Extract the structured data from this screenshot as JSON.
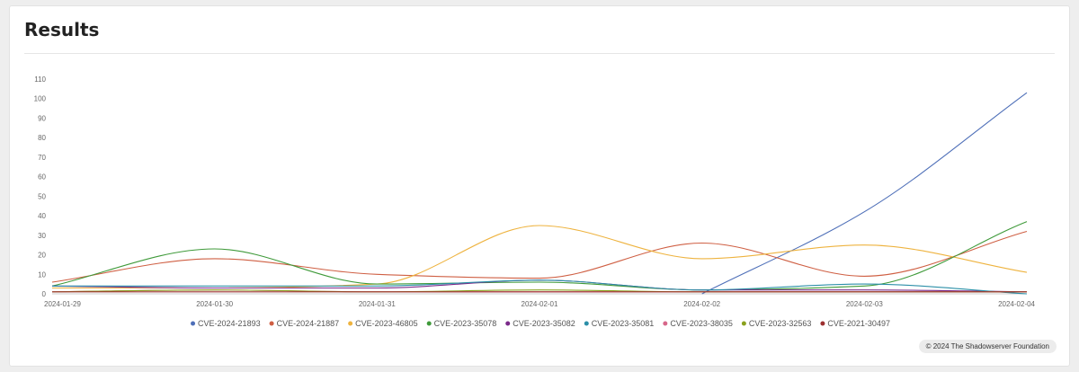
{
  "page": {
    "title": "Results",
    "credit": "© 2024 The Shadowserver Foundation"
  },
  "chart_data": {
    "type": "line",
    "title": "",
    "xlabel": "",
    "ylabel": "",
    "x": [
      "2024-01-29",
      "2024-01-30",
      "2024-01-31",
      "2024-02-01",
      "2024-02-02",
      "2024-02-03",
      "2024-02-04"
    ],
    "yticks": [
      0,
      10,
      20,
      30,
      40,
      50,
      60,
      70,
      80,
      90,
      100,
      110
    ],
    "ylim": [
      0,
      110
    ],
    "grid": false,
    "legend": "bottom",
    "series": [
      {
        "name": "CVE-2024-21893",
        "color": "#4e6fb8",
        "values": [
          null,
          null,
          null,
          null,
          0,
          42,
          103
        ]
      },
      {
        "name": "CVE-2024-21887",
        "color": "#cf5f43",
        "values": [
          6,
          18,
          10,
          8,
          26,
          9,
          32
        ]
      },
      {
        "name": "CVE-2023-46805",
        "color": "#eeb33f",
        "values": [
          3,
          3,
          5,
          35,
          18,
          25,
          11
        ]
      },
      {
        "name": "CVE-2023-35078",
        "color": "#3f9a3a",
        "values": [
          4,
          23,
          5,
          6,
          2,
          4,
          37
        ]
      },
      {
        "name": "CVE-2023-35082",
        "color": "#7b2a8a",
        "values": [
          4,
          3,
          3,
          7,
          2,
          2,
          1
        ]
      },
      {
        "name": "CVE-2023-35081",
        "color": "#2c8fa8",
        "values": [
          4,
          4,
          4,
          7,
          2,
          5,
          0
        ]
      },
      {
        "name": "CVE-2023-38035",
        "color": "#d7678a",
        "values": [
          1,
          2,
          1,
          1,
          1,
          1,
          1
        ]
      },
      {
        "name": "CVE-2023-32563",
        "color": "#8aa11e",
        "values": [
          1,
          2,
          1,
          2,
          1,
          1,
          1
        ]
      },
      {
        "name": "CVE-2021-30497",
        "color": "#9c3030",
        "values": [
          1,
          1,
          1,
          1,
          1,
          1,
          1
        ]
      }
    ]
  }
}
